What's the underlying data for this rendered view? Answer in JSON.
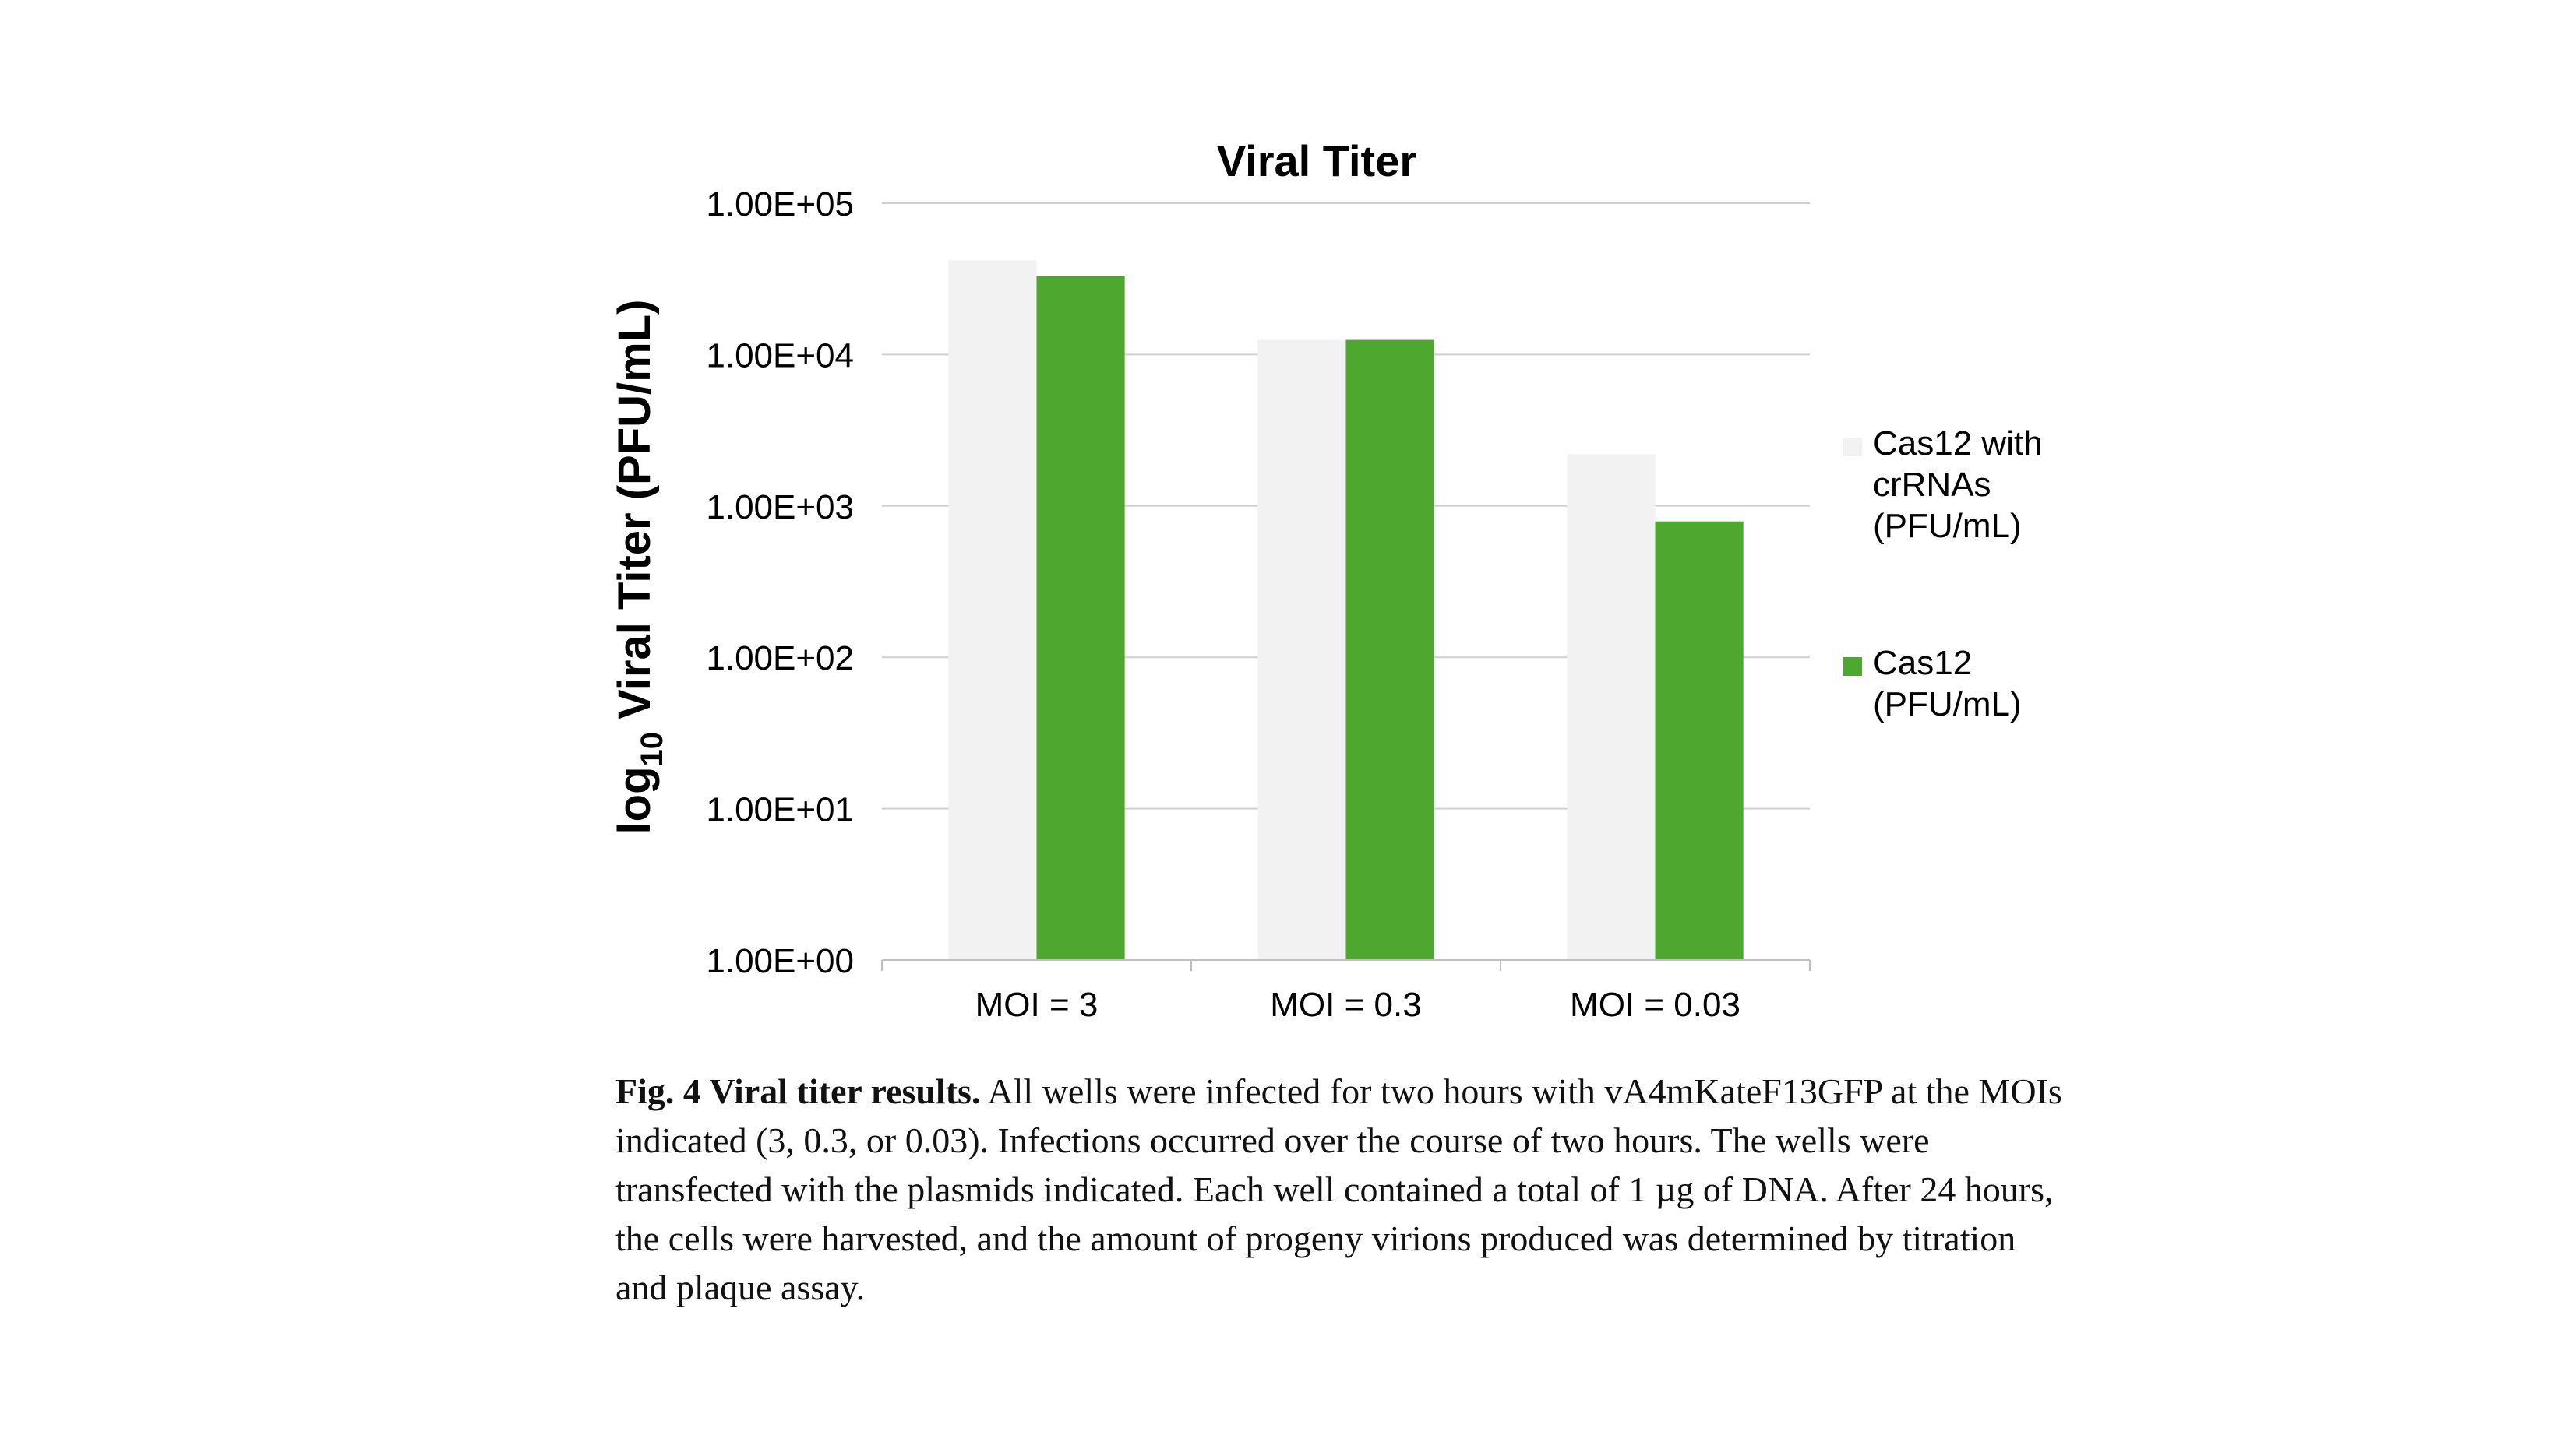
{
  "chart_data": {
    "type": "bar",
    "title": "Viral Titer",
    "ylabel": {
      "main": "log",
      "sub": "10",
      "rest": " Viral Titer (PFU/mL)"
    },
    "y_scale": "log",
    "ylim": [
      1,
      100000
    ],
    "y_ticks": [
      {
        "value": 1,
        "label": "1.00E+00"
      },
      {
        "value": 10,
        "label": "1.00E+01"
      },
      {
        "value": 100,
        "label": "1.00E+02"
      },
      {
        "value": 1000,
        "label": "1.00E+03"
      },
      {
        "value": 10000,
        "label": "1.00E+04"
      },
      {
        "value": 100000,
        "label": "1.00E+05"
      }
    ],
    "categories": [
      "MOI = 3",
      "MOI = 0.3",
      "MOI = 0.03"
    ],
    "grid": true,
    "legend_position": "right",
    "series": [
      {
        "name": "Cas12 with crRNAs (PFU/mL)",
        "legend_lines": [
          "Cas12 with",
          "crRNAs",
          "(PFU/mL)"
        ],
        "color": "#f2f2f2",
        "values": [
          42000,
          12500,
          2200
        ]
      },
      {
        "name": "Cas12 (PFU/mL)",
        "legend_lines": [
          "Cas12",
          "(PFU/mL)"
        ],
        "color": "#4ea72e",
        "values": [
          33000,
          12500,
          790
        ]
      }
    ]
  },
  "caption": {
    "lead": "Fig. 4 Viral titer results.",
    "body": " All wells were infected for two hours with vA4mKateF13GFP at the MOIs indicated (3, 0.3, or 0.03). Infections occurred over the course of two hours. The wells were transfected with the plasmids indicated. Each well contained a total of 1 µg of DNA. After 24 hours, the cells were harvested, and the amount of progeny virions produced was determined by titration and plaque assay."
  }
}
